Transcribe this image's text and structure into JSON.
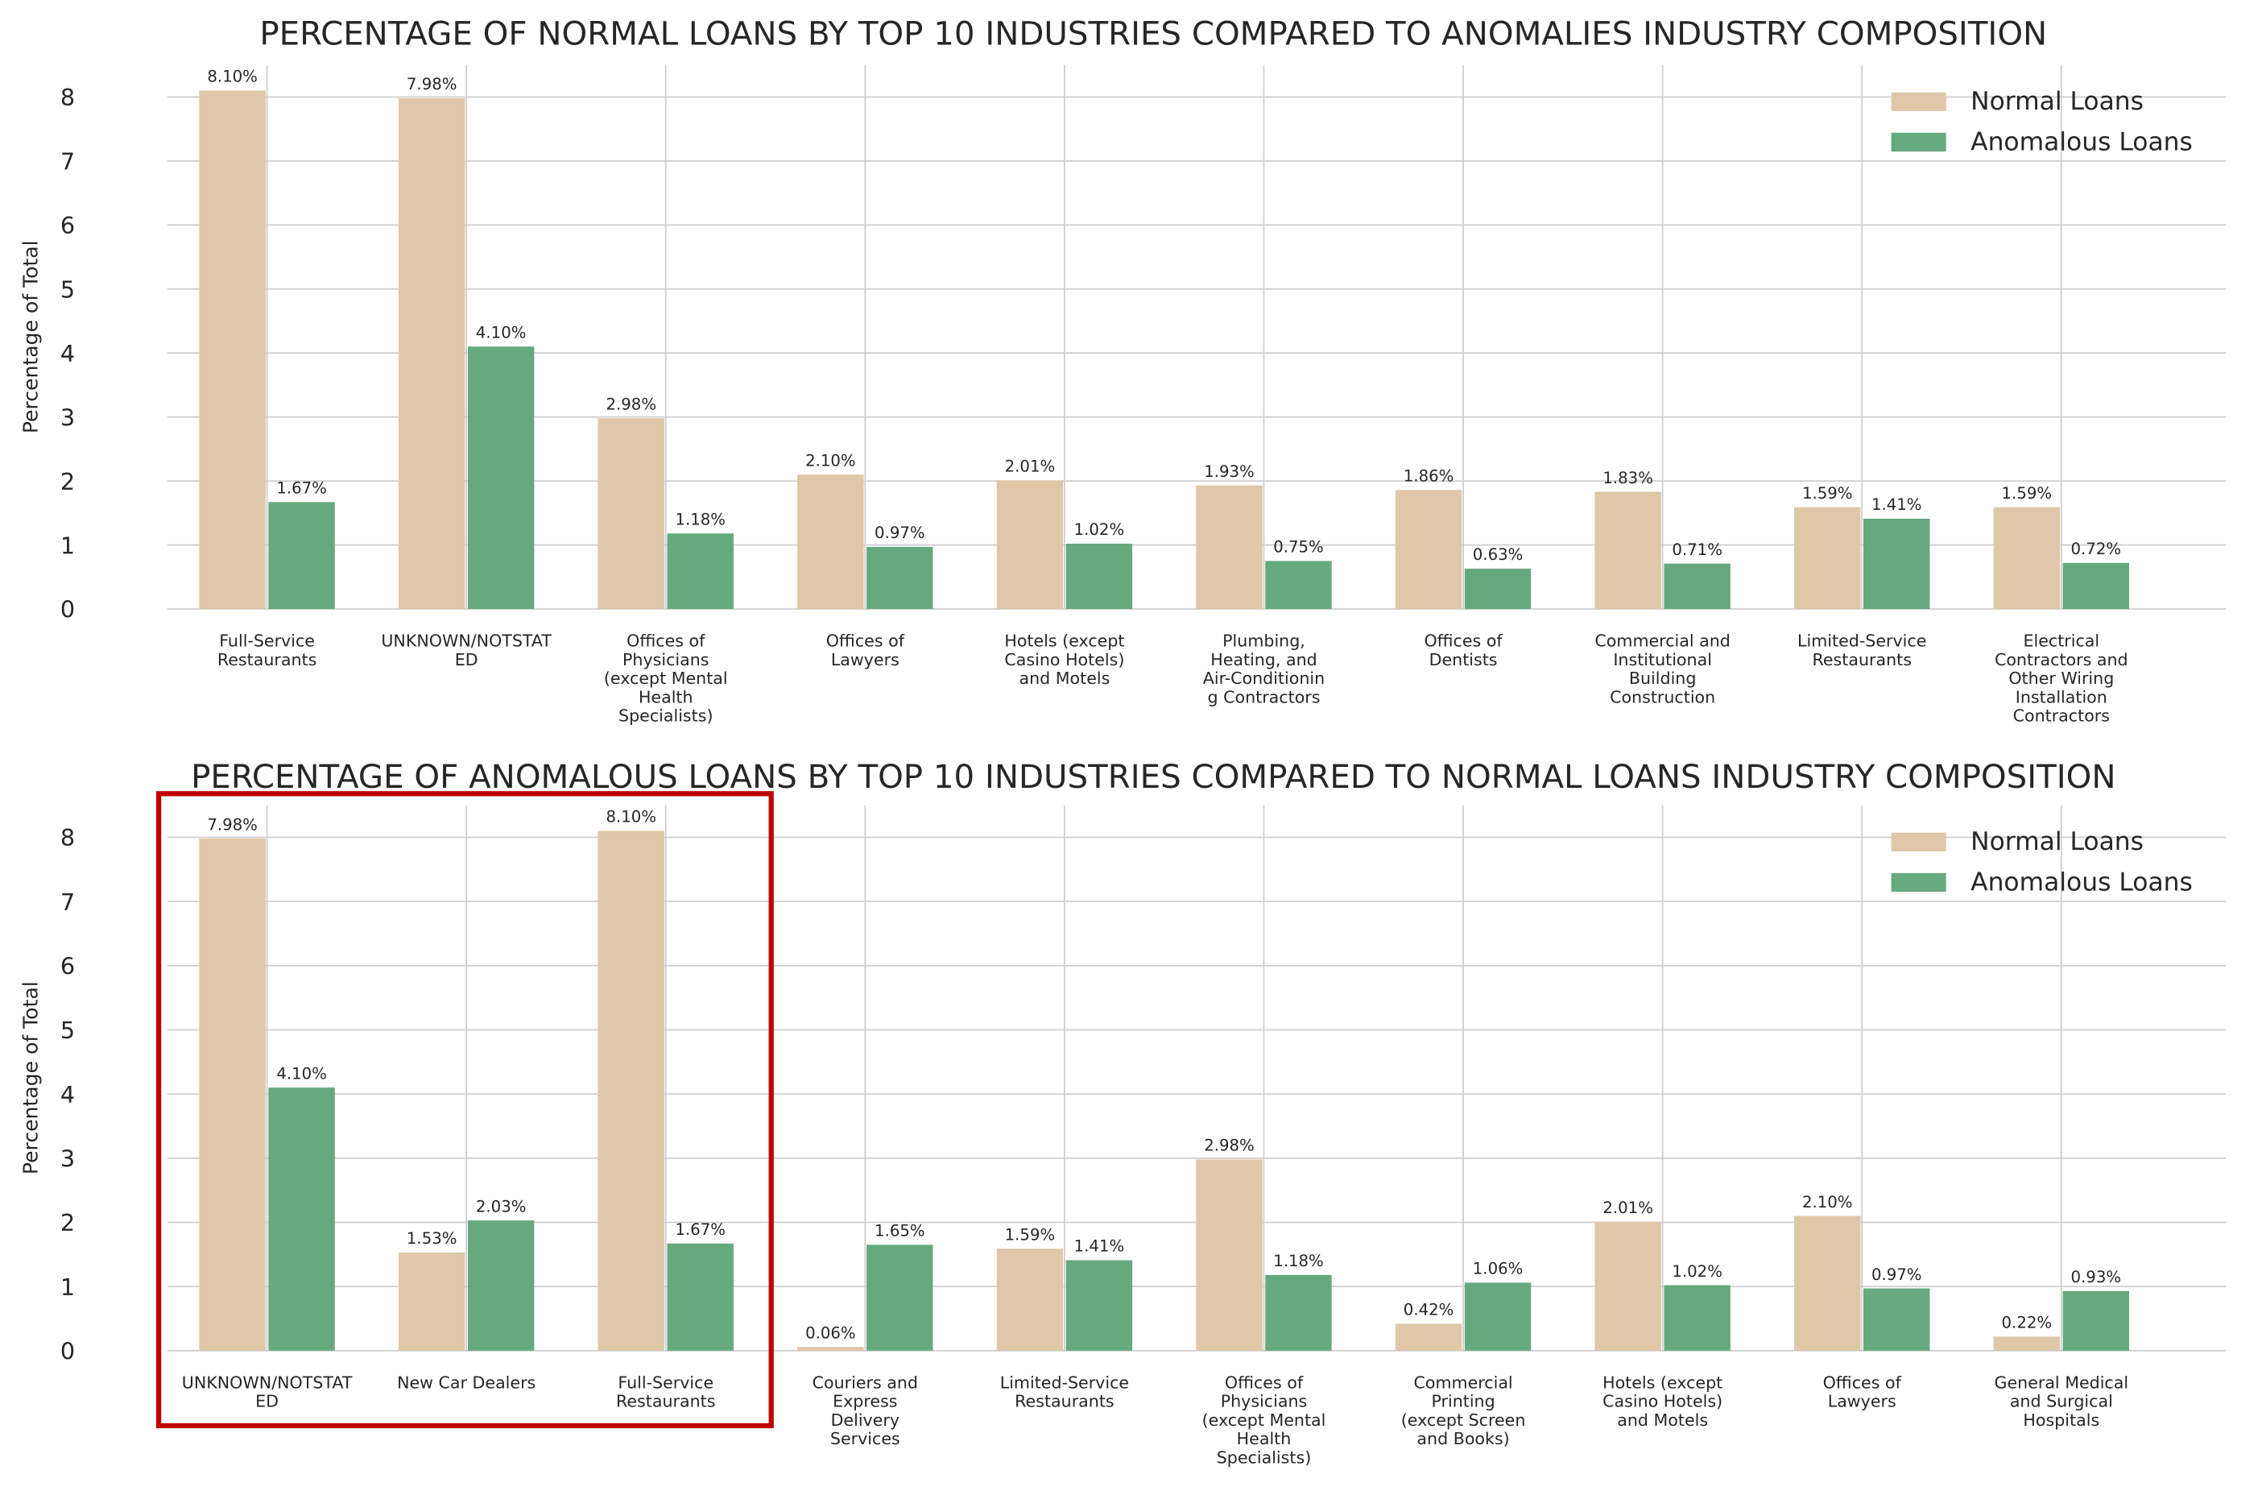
{
  "chart_data": [
    {
      "type": "bar",
      "title": "PERCENTAGE OF NORMAL LOANS BY TOP 10 INDUSTRIES COMPARED TO ANOMALIES INDUSTRY COMPOSITION",
      "ylabel": "Percentage of Total",
      "categories": [
        "Full-Service Restaurants",
        "UNKNOWN/NOTSTATED",
        "Offices of Physicians (except Mental Health Specialists)",
        "Offices of Lawyers",
        "Hotels (except Casino Hotels) and Motels",
        "Plumbing, Heating, and Air-Conditioning Contractors",
        "Offices of Dentists",
        "Commercial and Institutional Building Construction",
        "Limited-Service Restaurants",
        "Electrical Contractors and Other Wiring Installation Contractors"
      ],
      "series": [
        {
          "name": "Normal Loans",
          "color": "#dfc7a8",
          "values": [
            8.1,
            7.98,
            2.98,
            2.1,
            2.01,
            1.93,
            1.86,
            1.83,
            1.59,
            1.59
          ],
          "value_labels": [
            "8.10%",
            "7.98%",
            "2.98%",
            "2.10%",
            "2.01%",
            "1.93%",
            "1.86%",
            "1.83%",
            "1.59%",
            "1.59%"
          ]
        },
        {
          "name": "Anomalous Loans",
          "color": "#67a97f",
          "values": [
            1.67,
            4.1,
            1.18,
            0.97,
            1.02,
            0.75,
            0.63,
            0.71,
            1.41,
            0.72
          ],
          "value_labels": [
            "1.67%",
            "4.10%",
            "1.18%",
            "0.97%",
            "1.02%",
            "0.75%",
            "0.63%",
            "0.71%",
            "1.41%",
            "0.72%"
          ]
        }
      ],
      "ylim": [
        0,
        8.5
      ],
      "yticks": [
        0,
        1,
        2,
        3,
        4,
        5,
        6,
        7,
        8
      ],
      "grid": true,
      "legend": "upper right"
    },
    {
      "type": "bar",
      "title": "PERCENTAGE OF ANOMALOUS LOANS BY TOP 10 INDUSTRIES COMPARED TO NORMAL LOANS INDUSTRY COMPOSITION",
      "ylabel": "Percentage of Total",
      "categories": [
        "UNKNOWN/NOTSTATED",
        "New Car Dealers",
        "Full-Service Restaurants",
        "Couriers and Express Delivery Services",
        "Limited-Service Restaurants",
        "Offices of Physicians (except Mental Health Specialists)",
        "Commercial Printing (except Screen and Books)",
        "Hotels (except Casino Hotels) and Motels",
        "Offices of Lawyers",
        "General Medical and Surgical Hospitals"
      ],
      "series": [
        {
          "name": "Normal Loans",
          "color": "#dfc7a8",
          "values": [
            7.98,
            1.53,
            8.1,
            0.06,
            1.59,
            2.98,
            0.42,
            2.01,
            2.1,
            0.22
          ],
          "value_labels": [
            "7.98%",
            "1.53%",
            "8.10%",
            "0.06%",
            "1.59%",
            "2.98%",
            "0.42%",
            "2.01%",
            "2.10%",
            "0.22%"
          ]
        },
        {
          "name": "Anomalous Loans",
          "color": "#67a97f",
          "values": [
            4.1,
            2.03,
            1.67,
            1.65,
            1.41,
            1.18,
            1.06,
            1.02,
            0.97,
            0.93
          ],
          "value_labels": [
            "4.10%",
            "2.03%",
            "1.67%",
            "1.65%",
            "1.41%",
            "1.18%",
            "1.06%",
            "1.02%",
            "0.97%",
            "0.93%"
          ]
        }
      ],
      "ylim": [
        0,
        8.5
      ],
      "yticks": [
        0,
        1,
        2,
        3,
        4,
        5,
        6,
        7,
        8
      ],
      "grid": true,
      "legend": "upper right"
    }
  ]
}
